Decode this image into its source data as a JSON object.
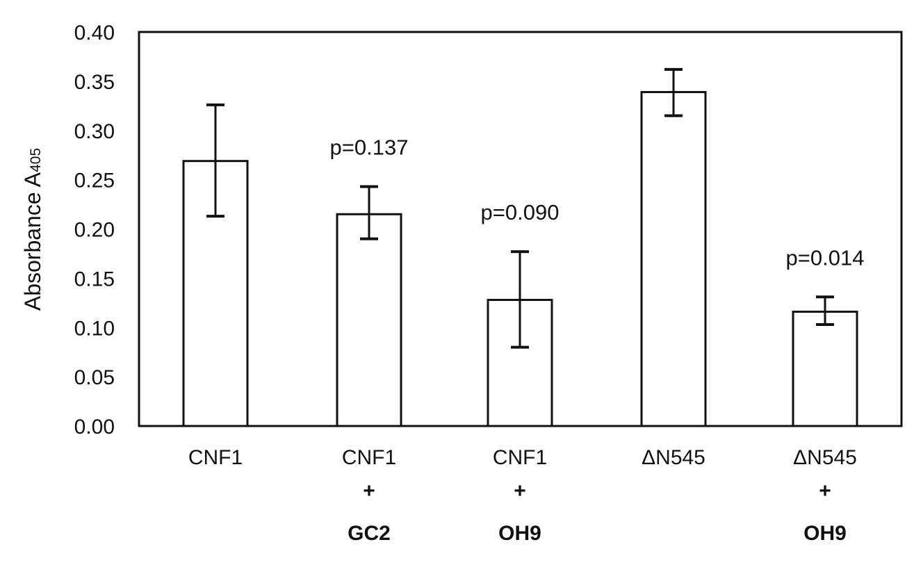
{
  "chart_data": {
    "type": "bar",
    "title": "",
    "xlabel": "",
    "ylabel": "Absorbance A405",
    "ylabel_main": "Absorbance A",
    "ylabel_sub": "405",
    "ylim": [
      0,
      0.4
    ],
    "yticks": [
      "0.00",
      "0.05",
      "0.10",
      "0.15",
      "0.20",
      "0.25",
      "0.30",
      "0.35",
      "0.40"
    ],
    "grid": false,
    "legend": null,
    "categories": [
      "CNF1",
      "CNF1 + GC2",
      "CNF1 + OH9",
      "ΔN545",
      "ΔN545 + OH9"
    ],
    "category_lines": [
      {
        "line1": "CNF1",
        "line2": "",
        "line3": ""
      },
      {
        "line1": "CNF1",
        "line2": "+",
        "line3": "GC2"
      },
      {
        "line1": "CNF1",
        "line2": "+",
        "line3": "OH9"
      },
      {
        "line1": "ΔN545",
        "line2": "",
        "line3": ""
      },
      {
        "line1": "ΔN545",
        "line2": "+",
        "line3": "OH9"
      }
    ],
    "values": [
      0.269,
      0.215,
      0.128,
      0.339,
      0.116
    ],
    "error_upper": [
      0.326,
      0.243,
      0.177,
      0.362,
      0.131
    ],
    "error_lower": [
      0.213,
      0.19,
      0.08,
      0.315,
      0.103
    ],
    "annotations": [
      "",
      "p=0.137",
      "p=0.090",
      "",
      "p=0.014"
    ]
  },
  "style": {
    "bar_fill": "#ffffff",
    "stroke": "#111111"
  }
}
